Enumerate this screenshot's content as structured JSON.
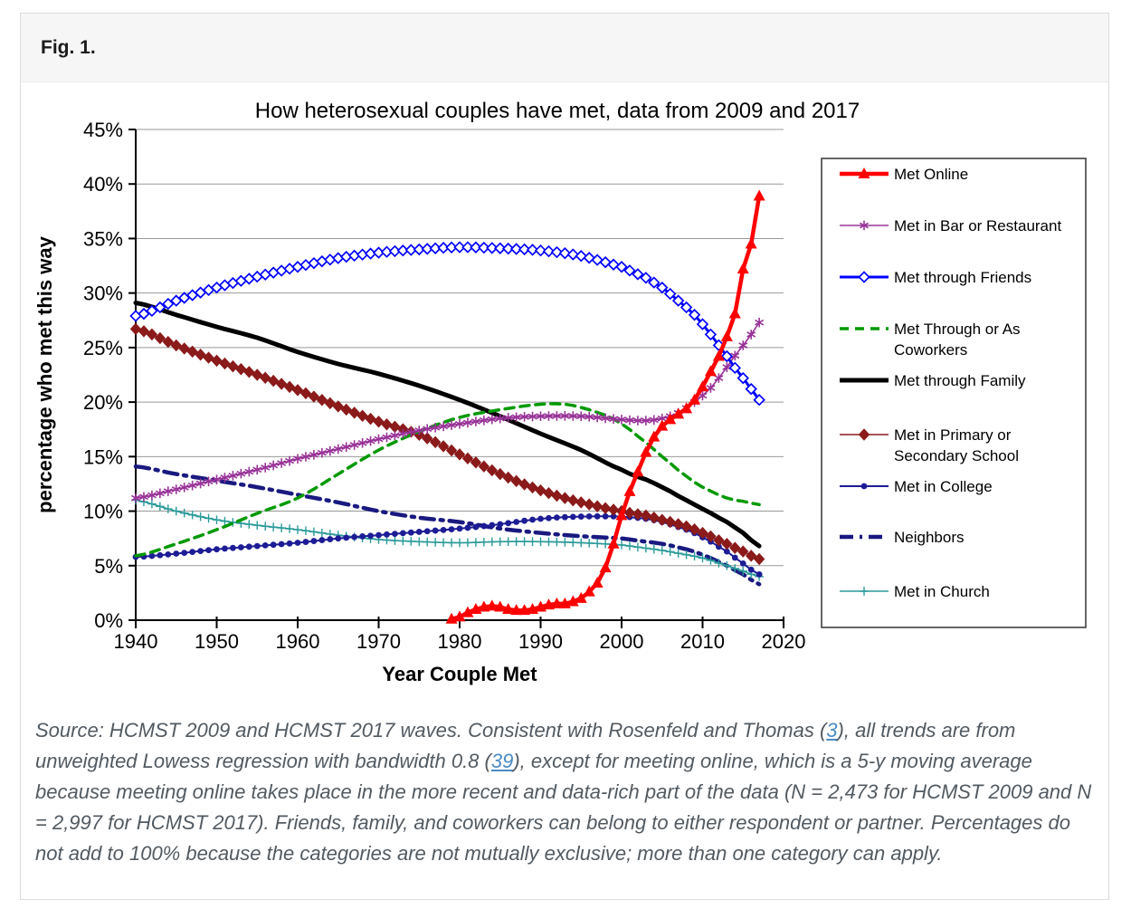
{
  "figure": {
    "label": "Fig. 1."
  },
  "chart_data": {
    "type": "line",
    "title": "How heterosexual couples have met, data from 2009 and 2017",
    "xlabel": "Year Couple Met",
    "ylabel": "percentage who met this way",
    "xlim": [
      1940,
      2020
    ],
    "ylim": [
      0,
      45
    ],
    "grid": "horizontal",
    "legend_position": "right",
    "x_tick_labels": [
      "1940",
      "1950",
      "1960",
      "1970",
      "1980",
      "1990",
      "2000",
      "2010",
      "2020"
    ],
    "x_ticks": [
      1940,
      1950,
      1960,
      1970,
      1980,
      1990,
      2000,
      2010,
      2020
    ],
    "y_tick_labels": [
      "0%",
      "5%",
      "10%",
      "15%",
      "20%",
      "25%",
      "30%",
      "35%",
      "40%",
      "45%"
    ],
    "y_ticks": [
      0,
      5,
      10,
      15,
      20,
      25,
      30,
      35,
      40,
      45
    ],
    "series": [
      {
        "id": "met-online",
        "name": "Met Online",
        "legend_lines": [
          "Met Online"
        ],
        "color": "#ff0000",
        "marker": "triangle",
        "dash": null,
        "width": 4.5,
        "points": [
          [
            1979,
            0.1
          ],
          [
            1980,
            0.3
          ],
          [
            1981,
            0.7
          ],
          [
            1982,
            1.0
          ],
          [
            1983,
            1.2
          ],
          [
            1984,
            1.3
          ],
          [
            1985,
            1.2
          ],
          [
            1986,
            1.0
          ],
          [
            1987,
            0.9
          ],
          [
            1988,
            0.9
          ],
          [
            1989,
            1.0
          ],
          [
            1990,
            1.2
          ],
          [
            1991,
            1.4
          ],
          [
            1992,
            1.5
          ],
          [
            1993,
            1.5
          ],
          [
            1994,
            1.7
          ],
          [
            1995,
            2.0
          ],
          [
            1996,
            2.6
          ],
          [
            1997,
            3.4
          ],
          [
            1998,
            4.8
          ],
          [
            1999,
            7.0
          ],
          [
            2000,
            9.6
          ],
          [
            2001,
            11.8
          ],
          [
            2002,
            13.6
          ],
          [
            2003,
            15.4
          ],
          [
            2004,
            16.8
          ],
          [
            2005,
            17.8
          ],
          [
            2006,
            18.4
          ],
          [
            2007,
            18.9
          ],
          [
            2008,
            19.4
          ],
          [
            2009,
            20.2
          ],
          [
            2010,
            21.4
          ],
          [
            2011,
            22.8
          ],
          [
            2012,
            24.2
          ],
          [
            2013,
            26.0
          ],
          [
            2014,
            28.1
          ],
          [
            2015,
            32.2
          ],
          [
            2016,
            34.5
          ],
          [
            2017,
            38.9
          ]
        ]
      },
      {
        "id": "met-bar-restaurant",
        "name": "Met in Bar or Restaurant",
        "legend_lines": [
          "Met in Bar or Restaurant"
        ],
        "color": "#993399",
        "marker": "asterisk",
        "dash": null,
        "width": 1.6,
        "points": [
          [
            1940,
            11.2
          ],
          [
            1945,
            12.0
          ],
          [
            1950,
            12.9
          ],
          [
            1955,
            13.8
          ],
          [
            1960,
            14.8
          ],
          [
            1965,
            15.7
          ],
          [
            1970,
            16.6
          ],
          [
            1975,
            17.4
          ],
          [
            1980,
            18.0
          ],
          [
            1985,
            18.5
          ],
          [
            1990,
            18.7
          ],
          [
            1995,
            18.7
          ],
          [
            2000,
            18.4
          ],
          [
            2003,
            18.3
          ],
          [
            2005,
            18.5
          ],
          [
            2007,
            19.0
          ],
          [
            2009,
            20.0
          ],
          [
            2011,
            21.3
          ],
          [
            2013,
            23.2
          ],
          [
            2015,
            25.2
          ],
          [
            2016,
            26.2
          ],
          [
            2017,
            27.3
          ]
        ]
      },
      {
        "id": "met-through-friends",
        "name": "Met through Friends",
        "legend_lines": [
          "Met through Friends"
        ],
        "color": "#0000ff",
        "marker": "diamond-open",
        "dash": null,
        "width": 3,
        "points": [
          [
            1940,
            27.9
          ],
          [
            1945,
            29.3
          ],
          [
            1950,
            30.5
          ],
          [
            1955,
            31.5
          ],
          [
            1960,
            32.4
          ],
          [
            1965,
            33.2
          ],
          [
            1970,
            33.7
          ],
          [
            1975,
            34.0
          ],
          [
            1980,
            34.2
          ],
          [
            1985,
            34.1
          ],
          [
            1990,
            33.9
          ],
          [
            1995,
            33.4
          ],
          [
            2000,
            32.4
          ],
          [
            2003,
            31.4
          ],
          [
            2005,
            30.5
          ],
          [
            2007,
            29.3
          ],
          [
            2009,
            28.0
          ],
          [
            2011,
            26.2
          ],
          [
            2013,
            24.2
          ],
          [
            2015,
            22.2
          ],
          [
            2016,
            21.2
          ],
          [
            2017,
            20.2
          ]
        ]
      },
      {
        "id": "met-coworkers",
        "name": "Met Through or As Coworkers",
        "legend_lines": [
          "Met Through or As",
          "Coworkers"
        ],
        "color": "#009900",
        "marker": null,
        "dash": "10 7",
        "width": 3.5,
        "points": [
          [
            1940,
            5.9
          ],
          [
            1945,
            7.0
          ],
          [
            1950,
            8.3
          ],
          [
            1955,
            9.8
          ],
          [
            1960,
            11.2
          ],
          [
            1965,
            13.4
          ],
          [
            1970,
            15.6
          ],
          [
            1975,
            17.3
          ],
          [
            1980,
            18.6
          ],
          [
            1985,
            19.3
          ],
          [
            1990,
            19.8
          ],
          [
            1993,
            19.8
          ],
          [
            1995,
            19.5
          ],
          [
            1998,
            18.8
          ],
          [
            2000,
            18.0
          ],
          [
            2003,
            16.3
          ],
          [
            2005,
            15.0
          ],
          [
            2008,
            13.2
          ],
          [
            2010,
            12.2
          ],
          [
            2013,
            11.2
          ],
          [
            2015,
            10.9
          ],
          [
            2017,
            10.6
          ]
        ]
      },
      {
        "id": "met-through-family",
        "name": "Met through Family",
        "legend_lines": [
          "Met through Family"
        ],
        "color": "#000000",
        "marker": null,
        "dash": null,
        "width": 5,
        "points": [
          [
            1940,
            29.1
          ],
          [
            1945,
            28.0
          ],
          [
            1950,
            26.9
          ],
          [
            1955,
            25.9
          ],
          [
            1960,
            24.6
          ],
          [
            1965,
            23.5
          ],
          [
            1970,
            22.6
          ],
          [
            1975,
            21.5
          ],
          [
            1980,
            20.2
          ],
          [
            1985,
            18.7
          ],
          [
            1990,
            17.1
          ],
          [
            1995,
            15.6
          ],
          [
            2000,
            13.8
          ],
          [
            2003,
            12.9
          ],
          [
            2005,
            12.2
          ],
          [
            2008,
            11.0
          ],
          [
            2010,
            10.2
          ],
          [
            2013,
            9.0
          ],
          [
            2015,
            8.0
          ],
          [
            2017,
            6.8
          ]
        ]
      },
      {
        "id": "met-school",
        "name": "Met in Primary or Secondary School",
        "legend_lines": [
          "Met in Primary or",
          "Secondary School"
        ],
        "color": "#8b1a1a",
        "marker": "diamond-fill",
        "dash": null,
        "width": 1.6,
        "points": [
          [
            1940,
            26.7
          ],
          [
            1945,
            25.2
          ],
          [
            1950,
            23.8
          ],
          [
            1955,
            22.5
          ],
          [
            1960,
            21.1
          ],
          [
            1965,
            19.6
          ],
          [
            1970,
            18.2
          ],
          [
            1975,
            17.0
          ],
          [
            1980,
            15.2
          ],
          [
            1985,
            13.4
          ],
          [
            1990,
            11.9
          ],
          [
            1995,
            10.8
          ],
          [
            2000,
            10.0
          ],
          [
            2003,
            9.6
          ],
          [
            2005,
            9.2
          ],
          [
            2008,
            8.6
          ],
          [
            2010,
            8.0
          ],
          [
            2013,
            7.0
          ],
          [
            2015,
            6.3
          ],
          [
            2017,
            5.6
          ]
        ]
      },
      {
        "id": "met-in-college",
        "name": "Met in College",
        "legend_lines": [
          "Met in College"
        ],
        "color": "#1c1c96",
        "marker": "circle",
        "dash": null,
        "width": 2,
        "points": [
          [
            1940,
            5.8
          ],
          [
            1945,
            6.1
          ],
          [
            1950,
            6.5
          ],
          [
            1955,
            6.8
          ],
          [
            1960,
            7.1
          ],
          [
            1965,
            7.5
          ],
          [
            1970,
            7.8
          ],
          [
            1975,
            8.1
          ],
          [
            1980,
            8.4
          ],
          [
            1985,
            8.8
          ],
          [
            1990,
            9.3
          ],
          [
            1995,
            9.5
          ],
          [
            2000,
            9.5
          ],
          [
            2003,
            9.3
          ],
          [
            2005,
            9.0
          ],
          [
            2008,
            8.3
          ],
          [
            2010,
            7.6
          ],
          [
            2013,
            6.3
          ],
          [
            2015,
            5.2
          ],
          [
            2017,
            4.2
          ]
        ]
      },
      {
        "id": "neighbors",
        "name": "Neighbors",
        "legend_lines": [
          "Neighbors"
        ],
        "color": "#191980",
        "marker": null,
        "dash": "15 7 3 7",
        "width": 4.5,
        "points": [
          [
            1940,
            14.1
          ],
          [
            1945,
            13.4
          ],
          [
            1950,
            12.8
          ],
          [
            1955,
            12.2
          ],
          [
            1960,
            11.5
          ],
          [
            1965,
            10.8
          ],
          [
            1970,
            10.0
          ],
          [
            1975,
            9.4
          ],
          [
            1980,
            9.0
          ],
          [
            1985,
            8.4
          ],
          [
            1990,
            8.0
          ],
          [
            1995,
            7.7
          ],
          [
            2000,
            7.5
          ],
          [
            2003,
            7.2
          ],
          [
            2005,
            7.0
          ],
          [
            2008,
            6.5
          ],
          [
            2010,
            6.0
          ],
          [
            2013,
            5.0
          ],
          [
            2015,
            4.2
          ],
          [
            2017,
            3.3
          ]
        ]
      },
      {
        "id": "met-in-church",
        "name": "Met in Church",
        "legend_lines": [
          "Met in Church"
        ],
        "color": "#2b9a9a",
        "marker": "plus",
        "dash": null,
        "width": 1.6,
        "points": [
          [
            1940,
            11.0
          ],
          [
            1945,
            10.0
          ],
          [
            1950,
            9.2
          ],
          [
            1955,
            8.7
          ],
          [
            1960,
            8.3
          ],
          [
            1965,
            7.8
          ],
          [
            1970,
            7.4
          ],
          [
            1975,
            7.2
          ],
          [
            1980,
            7.1
          ],
          [
            1985,
            7.2
          ],
          [
            1990,
            7.2
          ],
          [
            1995,
            7.1
          ],
          [
            2000,
            6.9
          ],
          [
            2003,
            6.6
          ],
          [
            2005,
            6.4
          ],
          [
            2008,
            6.0
          ],
          [
            2010,
            5.7
          ],
          [
            2013,
            5.0
          ],
          [
            2015,
            4.5
          ],
          [
            2017,
            4.0
          ]
        ]
      }
    ]
  },
  "caption": {
    "parts": [
      {
        "text": "Source: HCMST 2009 and HCMST 2017 waves. Consistent with Rosenfeld and Thomas ("
      },
      {
        "text": "3",
        "link": true
      },
      {
        "text": "), all trends are from unweighted Lowess regression with bandwidth 0.8 ("
      },
      {
        "text": "39",
        "link": true
      },
      {
        "text": "), except for meeting online, which is a 5-y moving average because meeting online takes place in the more recent and data-rich part of the data (N = 2,473 for HCMST 2009 and N = 2,997 for HCMST 2017). Friends, family, and coworkers can belong to either respondent or partner. Percentages do not add to 100% because the categories are not mutually exclusive; more than one category can apply."
      }
    ]
  }
}
